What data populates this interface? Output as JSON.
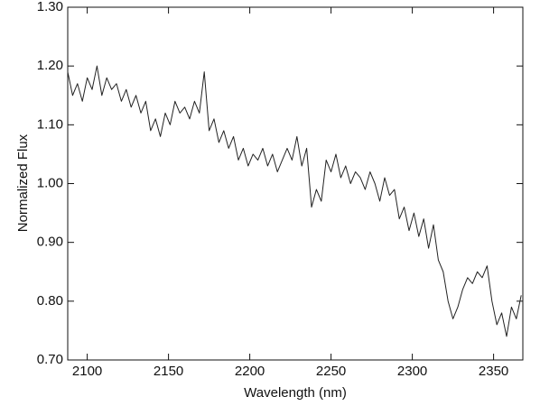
{
  "chart_data": {
    "type": "line",
    "x_label": "Wavelength (nm)",
    "y_label": "Normalized Flux",
    "color": "#222222",
    "x": [
      2088,
      2091,
      2094,
      2097,
      2100,
      2103,
      2106,
      2109,
      2112,
      2115,
      2118,
      2121,
      2124,
      2127,
      2130,
      2133,
      2136,
      2139,
      2142,
      2145,
      2148,
      2151,
      2154,
      2157,
      2160,
      2163,
      2166,
      2169,
      2172,
      2175,
      2178,
      2181,
      2184,
      2187,
      2190,
      2193,
      2196,
      2199,
      2202,
      2205,
      2208,
      2211,
      2214,
      2217,
      2220,
      2223,
      2226,
      2229,
      2232,
      2235,
      2238,
      2241,
      2244,
      2247,
      2250,
      2253,
      2256,
      2259,
      2262,
      2265,
      2268,
      2271,
      2274,
      2277,
      2280,
      2283,
      2286,
      2289,
      2292,
      2295,
      2298,
      2301,
      2304,
      2307,
      2310,
      2313,
      2316,
      2319,
      2322,
      2325,
      2328,
      2331,
      2334,
      2337,
      2340,
      2343,
      2346,
      2349,
      2352,
      2355,
      2358,
      2361,
      2364,
      2367
    ],
    "values": [
      1.19,
      1.15,
      1.17,
      1.14,
      1.18,
      1.16,
      1.2,
      1.15,
      1.18,
      1.16,
      1.17,
      1.14,
      1.16,
      1.13,
      1.15,
      1.12,
      1.14,
      1.09,
      1.11,
      1.08,
      1.12,
      1.1,
      1.14,
      1.12,
      1.13,
      1.11,
      1.14,
      1.12,
      1.19,
      1.09,
      1.11,
      1.07,
      1.09,
      1.06,
      1.08,
      1.04,
      1.06,
      1.03,
      1.05,
      1.04,
      1.06,
      1.03,
      1.05,
      1.02,
      1.04,
      1.06,
      1.04,
      1.08,
      1.03,
      1.06,
      0.96,
      0.99,
      0.97,
      1.04,
      1.02,
      1.05,
      1.01,
      1.03,
      1.0,
      1.02,
      1.01,
      0.99,
      1.02,
      1.0,
      0.97,
      1.01,
      0.98,
      0.99,
      0.94,
      0.96,
      0.92,
      0.95,
      0.91,
      0.94,
      0.89,
      0.93,
      0.87,
      0.85,
      0.8,
      0.77,
      0.79,
      0.82,
      0.84,
      0.83,
      0.85,
      0.84,
      0.86,
      0.8,
      0.76,
      0.78,
      0.74,
      0.79,
      0.77,
      0.81
    ],
    "xlim": [
      2088,
      2368
    ],
    "ylim": [
      0.7,
      1.3
    ],
    "xticks": [
      2100,
      2150,
      2200,
      2250,
      2300,
      2350
    ],
    "yticks": [
      {
        "value": 0.7,
        "label": "0.70"
      },
      {
        "value": 0.8,
        "label": "0.80"
      },
      {
        "value": 0.9,
        "label": "0.90"
      },
      {
        "value": 1.0,
        "label": "1.00"
      },
      {
        "value": 1.1,
        "label": "1.10"
      },
      {
        "value": 1.2,
        "label": "1.20"
      },
      {
        "value": 1.3,
        "label": "1.30"
      }
    ]
  }
}
